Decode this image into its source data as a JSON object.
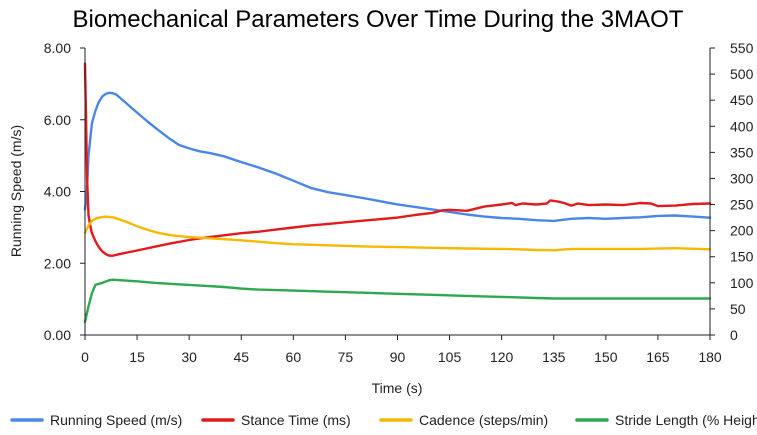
{
  "chart_data": {
    "type": "line",
    "title": "Biomechanical Parameters Over Time During the 3MAOT",
    "xlabel": "Time (s)",
    "ylabel": "Running Speed (m/s)",
    "y2label": "",
    "xlim": [
      0,
      180
    ],
    "ylim": [
      0,
      8
    ],
    "y2lim": [
      0,
      550
    ],
    "x_ticks": [
      "0",
      "15",
      "30",
      "45",
      "60",
      "75",
      "90",
      "105",
      "120",
      "135",
      "150",
      "165",
      "180"
    ],
    "x_tick_values": [
      0,
      15,
      30,
      45,
      60,
      75,
      90,
      105,
      120,
      135,
      150,
      165,
      180
    ],
    "y_ticks": [
      "0.00",
      "2.00",
      "4.00",
      "6.00",
      "8.00"
    ],
    "y_tick_values": [
      0,
      2,
      4,
      6,
      8
    ],
    "y2_ticks": [
      "0",
      "50",
      "100",
      "150",
      "200",
      "250",
      "300",
      "350",
      "400",
      "450",
      "500",
      "550"
    ],
    "y2_tick_values": [
      0,
      50,
      100,
      150,
      200,
      250,
      300,
      350,
      400,
      450,
      500,
      550
    ],
    "grid": "none",
    "legend_position": "bottom",
    "series": [
      {
        "name": "Running Speed (m/s)",
        "axis": "left",
        "color": "#4a86e8",
        "x": [
          0,
          0.5,
          1,
          2,
          3,
          4,
          5,
          6,
          7,
          8,
          9,
          10,
          12,
          15,
          18,
          21,
          24,
          27,
          30,
          33,
          36,
          40,
          45,
          50,
          55,
          60,
          65,
          70,
          75,
          80,
          85,
          90,
          95,
          100,
          105,
          110,
          115,
          120,
          125,
          130,
          135,
          140,
          145,
          150,
          155,
          160,
          165,
          170,
          175,
          180
        ],
        "y": [
          3.5,
          3.9,
          5.0,
          5.9,
          6.25,
          6.5,
          6.65,
          6.72,
          6.75,
          6.74,
          6.7,
          6.62,
          6.45,
          6.2,
          5.95,
          5.72,
          5.5,
          5.3,
          5.2,
          5.12,
          5.07,
          4.98,
          4.82,
          4.67,
          4.5,
          4.3,
          4.1,
          3.98,
          3.9,
          3.82,
          3.73,
          3.64,
          3.57,
          3.5,
          3.43,
          3.36,
          3.3,
          3.26,
          3.24,
          3.2,
          3.18,
          3.24,
          3.26,
          3.24,
          3.26,
          3.28,
          3.32,
          3.33,
          3.3,
          3.27
        ]
      },
      {
        "name": "Stance Time (ms)",
        "axis": "right",
        "color": "#e31a1c",
        "x": [
          0,
          0.3,
          0.6,
          1,
          1.5,
          2,
          3,
          4,
          5,
          6,
          7,
          8,
          10,
          12,
          15,
          20,
          25,
          30,
          35,
          40,
          45,
          50,
          55,
          60,
          65,
          70,
          75,
          80,
          85,
          90,
          95,
          100,
          103,
          105,
          110,
          115,
          120,
          123,
          124,
          126,
          130,
          133,
          134,
          136,
          138,
          140,
          142,
          145,
          150,
          155,
          160,
          163,
          165,
          170,
          175,
          180
        ],
        "y": [
          520,
          420,
          300,
          230,
          210,
          195,
          180,
          168,
          160,
          155,
          152,
          152,
          155,
          158,
          162,
          169,
          176,
          182,
          187,
          191,
          195,
          198,
          202,
          206,
          210,
          213,
          216,
          219,
          222,
          225,
          230,
          234,
          239,
          240,
          238,
          246,
          250,
          253,
          249,
          252,
          250,
          252,
          258,
          256,
          253,
          248,
          252,
          249,
          250,
          249,
          253,
          252,
          247,
          248,
          251,
          252
        ]
      },
      {
        "name": "Cadence (steps/min)",
        "axis": "left",
        "color": "#f6b900",
        "x": [
          0,
          1,
          2,
          3,
          4,
          5,
          6,
          8,
          10,
          12,
          15,
          18,
          21,
          25,
          30,
          35,
          40,
          45,
          50,
          55,
          60,
          70,
          80,
          90,
          100,
          110,
          120,
          125,
          130,
          135,
          140,
          145,
          150,
          160,
          170,
          180
        ],
        "y": [
          2.85,
          3.05,
          3.18,
          3.24,
          3.27,
          3.29,
          3.3,
          3.28,
          3.22,
          3.15,
          3.03,
          2.93,
          2.85,
          2.78,
          2.73,
          2.7,
          2.67,
          2.64,
          2.6,
          2.56,
          2.53,
          2.5,
          2.47,
          2.45,
          2.43,
          2.41,
          2.4,
          2.39,
          2.37,
          2.36,
          2.4,
          2.4,
          2.4,
          2.4,
          2.42,
          2.39
        ]
      },
      {
        "name": "Stride Length (% Height)",
        "axis": "right",
        "color": "#2ea84f",
        "x": [
          0,
          1,
          2,
          3,
          5,
          7,
          8,
          10,
          15,
          20,
          25,
          30,
          35,
          40,
          45,
          50,
          60,
          70,
          80,
          90,
          100,
          110,
          120,
          130,
          135,
          140,
          150,
          160,
          170,
          180
        ],
        "y": [
          25,
          55,
          80,
          96,
          100,
          105,
          106,
          105,
          103,
          100,
          98,
          96,
          94,
          92,
          89,
          87,
          85,
          83,
          81,
          79,
          77,
          75,
          73,
          71,
          70,
          70,
          70,
          70,
          70,
          70
        ]
      }
    ]
  }
}
